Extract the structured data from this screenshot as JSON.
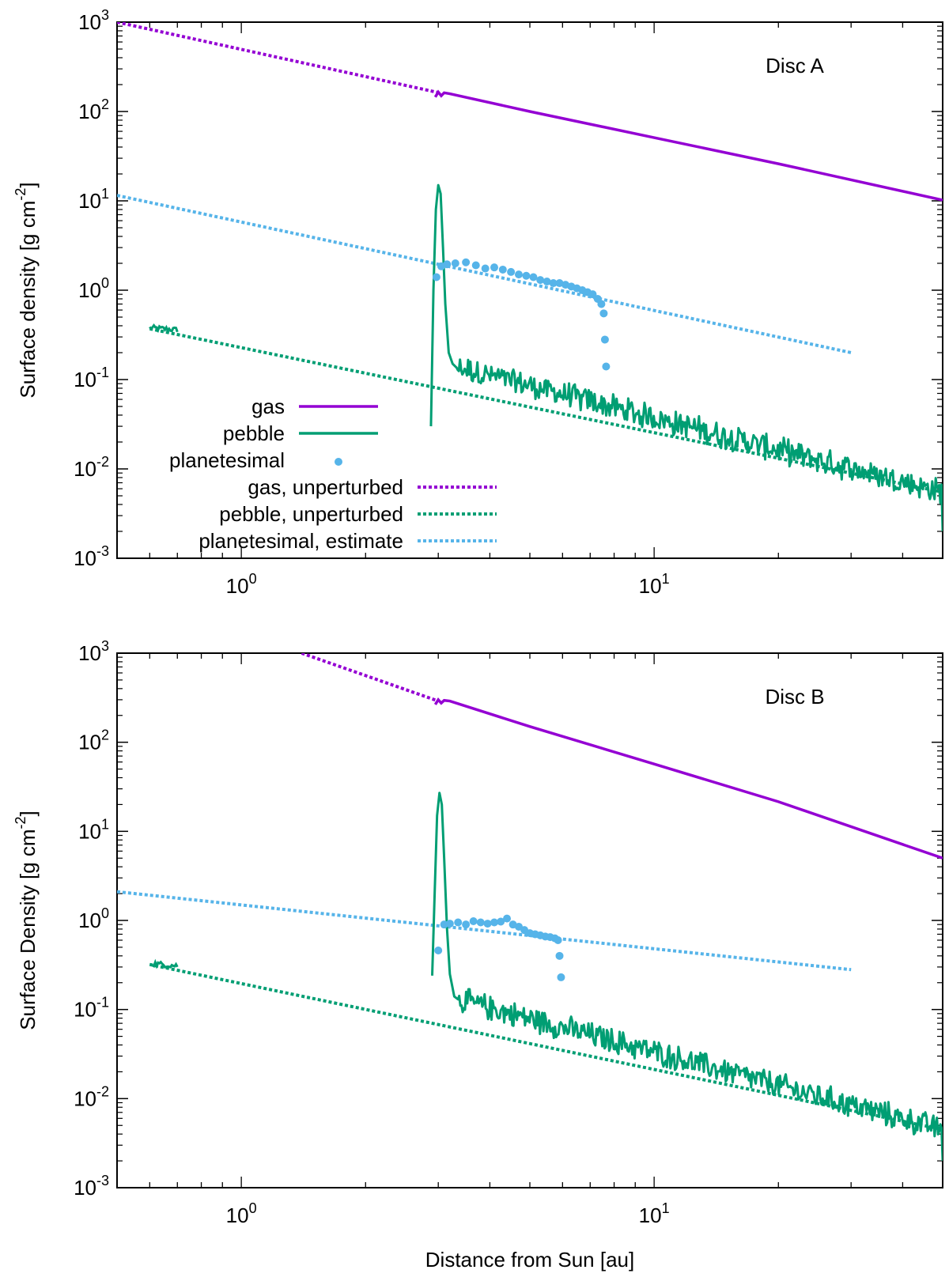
{
  "chart_data": [
    {
      "type": "line",
      "panel_label": "Disc A",
      "xlabel": "",
      "ylabel": "Surface density [g cm^-2]",
      "ylabel_text": "Surface density [g cm",
      "ylabel_exp": "-2",
      "ylabel_tail": "]",
      "xscale": "log",
      "yscale": "log",
      "xlim": [
        0.5,
        50
      ],
      "ylim": [
        0.001,
        1000
      ],
      "x_ticks": [
        {
          "value": 1,
          "base": "10",
          "exp": "0"
        },
        {
          "value": 10,
          "base": "10",
          "exp": "1"
        }
      ],
      "y_ticks": [
        {
          "value": 0.001,
          "base": "10",
          "exp": "-3"
        },
        {
          "value": 0.01,
          "base": "10",
          "exp": "-2"
        },
        {
          "value": 0.1,
          "base": "10",
          "exp": "-1"
        },
        {
          "value": 1,
          "base": "10",
          "exp": "0"
        },
        {
          "value": 10,
          "base": "10",
          "exp": "1"
        },
        {
          "value": 100,
          "base": "10",
          "exp": "2"
        },
        {
          "value": 1000,
          "base": "10",
          "exp": "3"
        }
      ],
      "grid": false,
      "legend_position": "left, lower half of panel",
      "legend": [
        {
          "label": "gas",
          "key": "gas"
        },
        {
          "label": "pebble",
          "key": "pebble"
        },
        {
          "label": "planetesimal",
          "key": "planetesimal"
        },
        {
          "label": "gas, unperturbed",
          "key": "gas_unperturbed"
        },
        {
          "label": "pebble, unperturbed",
          "key": "pebble_unperturbed"
        },
        {
          "label": "planetesimal, estimate",
          "key": "planetesimal_estimate"
        }
      ],
      "series": [
        {
          "key": "gas_unperturbed",
          "name": "gas, unperturbed",
          "style": "dotted",
          "color": "#9400d3",
          "x": [
            0.5,
            3.0
          ],
          "y": [
            1000,
            163
          ]
        },
        {
          "key": "gas",
          "name": "gas",
          "style": "solid",
          "color": "#9400d3",
          "x": [
            2.95,
            3.0,
            3.05,
            3.1,
            3.2,
            5,
            10,
            20,
            50
          ],
          "y": [
            145,
            165,
            150,
            162,
            158,
            100,
            51,
            26,
            10.2
          ]
        },
        {
          "key": "planetesimal_estimate",
          "name": "planetesimal, estimate",
          "style": "dotted",
          "color": "#56b4e9",
          "x": [
            0.5,
            30
          ],
          "y": [
            11.5,
            0.2
          ]
        },
        {
          "key": "pebble_unperturbed",
          "name": "pebble, unperturbed",
          "style": "dotted",
          "color": "#009e73",
          "x": [
            0.6,
            50
          ],
          "y": [
            0.37,
            0.0055
          ]
        },
        {
          "key": "pebble",
          "name": "pebble",
          "style": "solid",
          "color": "#009e73",
          "x": [
            0.6,
            0.7
          ],
          "y": [
            0.38,
            0.36
          ],
          "peak": {
            "x": [
              2.88,
              2.92,
              2.96,
              3.0,
              3.04,
              3.08,
              3.12,
              3.18,
              3.25,
              3.3
            ],
            "y": [
              0.03,
              1.0,
              8.0,
              15.0,
              12.0,
              3.0,
              0.7,
              0.2,
              0.15,
              0.14
            ]
          },
          "noisy_tail": {
            "x": [
              3.3,
              50
            ],
            "y": [
              0.14,
              0.0055
            ],
            "noise_dex": 0.16
          }
        },
        {
          "key": "planetesimal",
          "name": "planetesimal",
          "style": "points",
          "color": "#56b4e9",
          "x": [
            2.97,
            3.05,
            3.15,
            3.3,
            3.5,
            3.7,
            3.9,
            4.1,
            4.3,
            4.5,
            4.7,
            4.9,
            5.1,
            5.3,
            5.5,
            5.7,
            5.9,
            6.1,
            6.3,
            6.5,
            6.7,
            6.9,
            7.1,
            7.3,
            7.45,
            7.55,
            7.6,
            7.65
          ],
          "y": [
            1.4,
            1.85,
            1.95,
            2.0,
            2.05,
            1.9,
            1.75,
            1.8,
            1.7,
            1.6,
            1.5,
            1.45,
            1.4,
            1.3,
            1.25,
            1.2,
            1.2,
            1.15,
            1.1,
            1.05,
            1.0,
            0.95,
            0.9,
            0.8,
            0.7,
            0.55,
            0.28,
            0.14
          ]
        }
      ]
    },
    {
      "type": "line",
      "panel_label": "Disc B",
      "xlabel": "Distance from Sun [au]",
      "ylabel": "Surface Density [g cm^-2]",
      "ylabel_text": "Surface Density [g cm",
      "ylabel_exp": "-2",
      "ylabel_tail": "]",
      "xscale": "log",
      "yscale": "log",
      "xlim": [
        0.5,
        50
      ],
      "ylim": [
        0.001,
        1000
      ],
      "x_ticks": [
        {
          "value": 1,
          "base": "10",
          "exp": "0"
        },
        {
          "value": 10,
          "base": "10",
          "exp": "1"
        }
      ],
      "y_ticks": [
        {
          "value": 0.001,
          "base": "10",
          "exp": "-3"
        },
        {
          "value": 0.01,
          "base": "10",
          "exp": "-2"
        },
        {
          "value": 0.1,
          "base": "10",
          "exp": "-1"
        },
        {
          "value": 1,
          "base": "10",
          "exp": "0"
        },
        {
          "value": 10,
          "base": "10",
          "exp": "1"
        },
        {
          "value": 100,
          "base": "10",
          "exp": "2"
        },
        {
          "value": 1000,
          "base": "10",
          "exp": "3"
        }
      ],
      "grid": false,
      "legend": [],
      "series": [
        {
          "key": "gas_unperturbed",
          "name": "gas, unperturbed",
          "style": "dotted",
          "color": "#9400d3",
          "x": [
            1.4,
            3.0
          ],
          "y": [
            1000,
            290
          ]
        },
        {
          "key": "gas",
          "name": "gas",
          "style": "solid",
          "color": "#9400d3",
          "x": [
            2.95,
            3.0,
            3.05,
            3.1,
            3.2,
            5,
            10,
            20,
            50
          ],
          "y": [
            265,
            300,
            275,
            295,
            290,
            150,
            57,
            21.5,
            5.0
          ]
        },
        {
          "key": "planetesimal_estimate",
          "name": "planetesimal, estimate",
          "style": "dotted",
          "color": "#56b4e9",
          "x": [
            0.5,
            30
          ],
          "y": [
            2.1,
            0.28
          ]
        },
        {
          "key": "pebble_unperturbed",
          "name": "pebble, unperturbed",
          "style": "dotted",
          "color": "#009e73",
          "x": [
            0.6,
            50
          ],
          "y": [
            0.32,
            0.0045
          ]
        },
        {
          "key": "pebble",
          "name": "pebble",
          "style": "solid",
          "color": "#009e73",
          "x": [
            0.6,
            0.7
          ],
          "y": [
            0.33,
            0.31
          ],
          "peak": {
            "x": [
              2.9,
              2.94,
              2.98,
              3.02,
              3.06,
              3.1,
              3.15,
              3.2,
              3.28,
              3.35
            ],
            "y": [
              0.24,
              2.0,
              15.0,
              27.0,
              20.0,
              5.0,
              0.8,
              0.25,
              0.14,
              0.13
            ]
          },
          "noisy_tail": {
            "x": [
              3.35,
              50
            ],
            "y": [
              0.13,
              0.0045
            ],
            "noise_dex": 0.16
          }
        },
        {
          "key": "planetesimal",
          "name": "planetesimal",
          "style": "points",
          "color": "#56b4e9",
          "x": [
            3.0,
            3.1,
            3.2,
            3.35,
            3.5,
            3.65,
            3.8,
            3.95,
            4.1,
            4.25,
            4.4,
            4.55,
            4.7,
            4.85,
            5.0,
            5.15,
            5.3,
            5.45,
            5.6,
            5.75,
            5.85,
            5.9,
            5.95
          ],
          "y": [
            0.46,
            0.9,
            0.92,
            0.95,
            0.9,
            0.98,
            0.95,
            0.92,
            0.95,
            0.97,
            1.05,
            0.9,
            0.85,
            0.78,
            0.72,
            0.7,
            0.68,
            0.66,
            0.65,
            0.63,
            0.6,
            0.4,
            0.23
          ]
        }
      ]
    }
  ]
}
